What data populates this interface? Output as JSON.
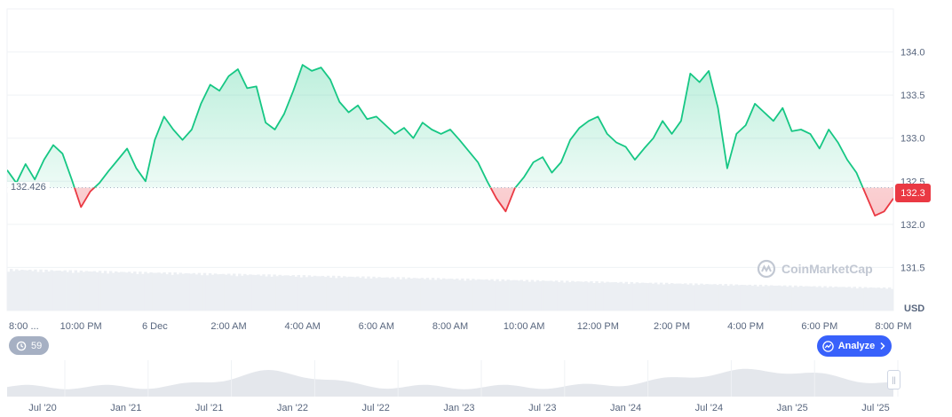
{
  "chart_data": {
    "type": "area",
    "currency": "USD",
    "reference_value": 132.426,
    "current_value": 132.3,
    "ylim": [
      131.0,
      134.5
    ],
    "y_ticks": [
      131.5,
      132.0,
      132.5,
      133.0,
      133.5,
      134.0
    ],
    "y_tick_labels": [
      "131.5",
      "132.0",
      "132.5",
      "133.0",
      "133.5",
      "134.0"
    ],
    "x_tick_labels": [
      "8:00 ...",
      "10:00 PM",
      "6 Dec",
      "2:00 AM",
      "4:00 AM",
      "6:00 AM",
      "8:00 AM",
      "10:00 AM",
      "12:00 PM",
      "2:00 PM",
      "4:00 PM",
      "6:00 PM",
      "8:00 PM"
    ],
    "x_tick_hours": [
      0,
      2,
      4,
      6,
      8,
      10,
      12,
      14,
      16,
      18,
      20,
      22,
      24
    ],
    "series": [
      {
        "x": [
          0.0,
          0.25,
          0.5,
          0.75,
          1.0,
          1.25,
          1.5,
          1.75,
          2.0,
          2.25,
          2.5,
          2.75,
          3.0,
          3.25,
          3.5,
          3.75,
          4.0,
          4.25,
          4.5,
          4.75,
          5.0,
          5.25,
          5.5,
          5.75,
          6.0,
          6.25,
          6.5,
          6.75,
          7.0,
          7.25,
          7.5,
          7.75,
          8.0,
          8.25,
          8.5,
          8.75,
          9.0,
          9.25,
          9.5,
          9.75,
          10.0,
          10.25,
          10.5,
          10.75,
          11.0,
          11.25,
          11.5,
          11.75,
          12.0,
          12.25,
          12.5,
          12.75,
          13.0,
          13.25,
          13.5,
          13.75,
          14.0,
          14.25,
          14.5,
          14.75,
          15.0,
          15.25,
          15.5,
          15.75,
          16.0,
          16.25,
          16.5,
          16.75,
          17.0,
          17.25,
          17.5,
          17.75,
          18.0,
          18.25,
          18.5,
          18.75,
          19.0,
          19.25,
          19.5,
          19.75,
          20.0,
          20.25,
          20.5,
          20.75,
          21.0,
          21.25,
          21.5,
          21.75,
          22.0,
          22.25,
          22.5,
          22.75,
          23.0,
          23.25,
          23.5,
          23.75,
          24.0
        ],
        "values": [
          132.63,
          132.48,
          132.7,
          132.52,
          132.75,
          132.92,
          132.82,
          132.52,
          132.2,
          132.38,
          132.48,
          132.62,
          132.75,
          132.88,
          132.65,
          132.5,
          132.98,
          133.25,
          133.1,
          132.98,
          133.1,
          133.4,
          133.62,
          133.55,
          133.72,
          133.8,
          133.58,
          133.6,
          133.18,
          133.1,
          133.28,
          133.55,
          133.85,
          133.78,
          133.82,
          133.68,
          133.42,
          133.3,
          133.38,
          133.22,
          133.25,
          133.15,
          133.05,
          133.12,
          133.0,
          133.18,
          133.1,
          133.05,
          133.1,
          132.98,
          132.85,
          132.72,
          132.5,
          132.3,
          132.15,
          132.42,
          132.55,
          132.72,
          132.78,
          132.6,
          132.72,
          132.98,
          133.12,
          133.2,
          133.25,
          133.05,
          132.95,
          132.9,
          132.75,
          132.88,
          133.0,
          133.2,
          133.05,
          133.2,
          133.75,
          133.65,
          133.78,
          133.35,
          132.65,
          133.05,
          133.15,
          133.4,
          133.3,
          133.2,
          133.35,
          133.08,
          133.1,
          133.05,
          132.88,
          133.1,
          132.95,
          132.75,
          132.6,
          132.35,
          132.1,
          132.15,
          132.3
        ]
      }
    ],
    "range_navigator": {
      "x_tick_labels": [
        "Jul '20",
        "Jan '21",
        "Jul '21",
        "Jan '22",
        "Jul '22",
        "Jan '23",
        "Jul '23",
        "Jan '24",
        "Jul '24",
        "Jan '25",
        "Jul '25"
      ]
    },
    "colors": {
      "up_line": "#16c784",
      "down_line": "#ea3943",
      "up_fill": "#16c784",
      "down_fill": "#ea3943",
      "grid": "#eff2f5",
      "volume": "#eceff3",
      "navigator_area": "#e4e7ec"
    }
  },
  "badges": {
    "current_price": "132.3",
    "reference_price": "132.426",
    "currency": "USD",
    "annotation_count": "59",
    "analyze_label": "Analyze",
    "watermark": "CoinMarketCap"
  },
  "icons": {
    "history": "history-icon",
    "analyze": "analyze-icon",
    "chevron": "chevron-right-icon",
    "logo": "coinmarketcap-logo-icon",
    "handle": "drag-handle-icon"
  }
}
